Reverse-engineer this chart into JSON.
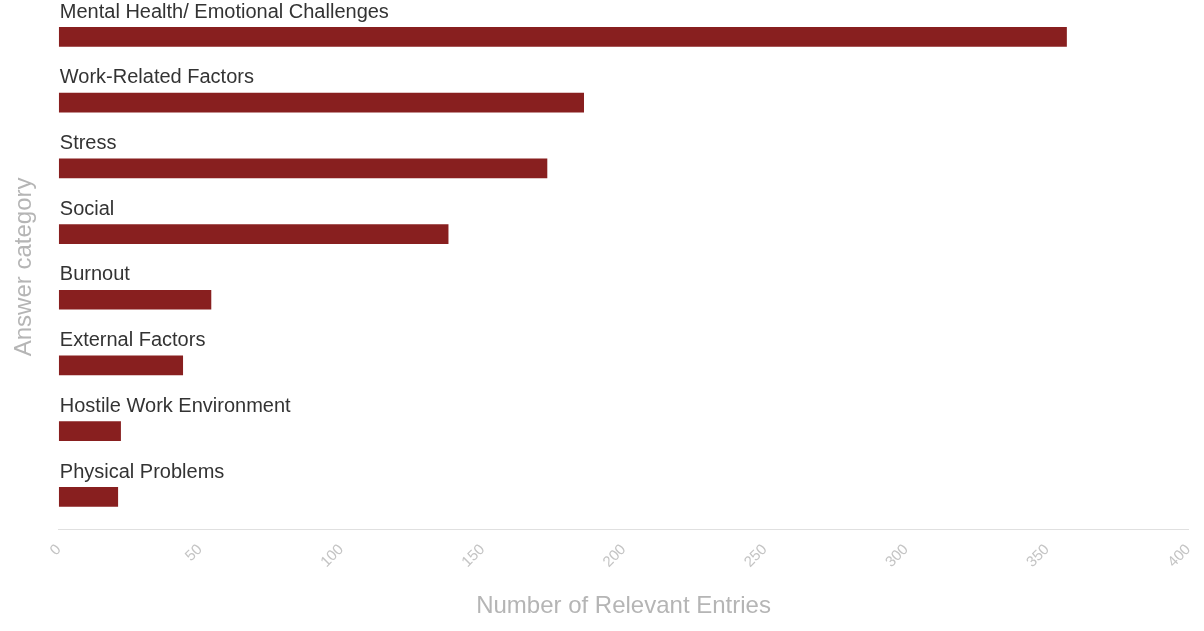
{
  "chart_data": {
    "type": "bar",
    "orientation": "horizontal",
    "ylabel": "Answer category",
    "xlabel": "Number of Relevant Entries",
    "categories": [
      "Mental Health/ Emotional Challenges",
      "Work-Related Factors",
      "Stress",
      "Social",
      "Burnout",
      "External Factors",
      "Hostile Work Environment",
      "Physical Problems"
    ],
    "values": [
      357,
      186,
      173,
      138,
      54,
      44,
      22,
      21
    ],
    "color": "#881f1f",
    "xlim": [
      0,
      400
    ],
    "xticks": [
      0,
      50,
      100,
      150,
      200,
      250,
      300,
      350,
      400
    ],
    "grid": false,
    "legend": false
  }
}
